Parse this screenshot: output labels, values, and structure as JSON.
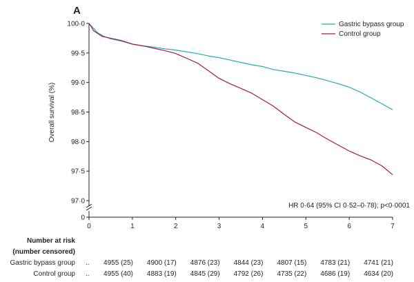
{
  "chart_data": {
    "type": "line",
    "panel_label": "A",
    "ylabel": "Overall survival (%)",
    "xlabel": "",
    "xlim": [
      0,
      7
    ],
    "ylim": [
      97.0,
      100.0
    ],
    "y_axis_break": true,
    "x_ticks": [
      "0",
      "1",
      "2",
      "3",
      "4",
      "5",
      "6",
      "7"
    ],
    "y_ticks": [
      "97·0",
      "97·5",
      "98·0",
      "98·5",
      "99·0",
      "99·5",
      "100·0"
    ],
    "y_break_label": "0",
    "legend_position": "top-right",
    "series": [
      {
        "name": "Gastric bypass group",
        "color": "#2aa6b5",
        "x": [
          0,
          0.1,
          0.2,
          0.35,
          0.5,
          0.75,
          1.0,
          1.25,
          1.5,
          1.75,
          2.0,
          2.25,
          2.5,
          2.75,
          3.0,
          3.25,
          3.5,
          3.75,
          4.0,
          4.25,
          4.5,
          4.75,
          5.0,
          5.25,
          5.5,
          5.75,
          6.0,
          6.25,
          6.5,
          6.75,
          7.0
        ],
        "y": [
          100.0,
          99.92,
          99.84,
          99.78,
          99.74,
          99.7,
          99.65,
          99.62,
          99.6,
          99.57,
          99.55,
          99.52,
          99.49,
          99.45,
          99.42,
          99.38,
          99.34,
          99.3,
          99.27,
          99.22,
          99.19,
          99.16,
          99.12,
          99.08,
          99.03,
          98.98,
          98.92,
          98.84,
          98.74,
          98.64,
          98.54
        ]
      },
      {
        "name": "Control group",
        "color": "#a3184b",
        "x": [
          0,
          0.05,
          0.1,
          0.2,
          0.3,
          0.5,
          0.75,
          1.0,
          1.25,
          1.5,
          1.75,
          2.0,
          2.25,
          2.5,
          2.75,
          3.0,
          3.25,
          3.5,
          3.75,
          4.0,
          4.25,
          4.5,
          4.75,
          5.0,
          5.25,
          5.5,
          5.75,
          6.0,
          6.25,
          6.5,
          6.75,
          7.0
        ],
        "y": [
          100.0,
          99.95,
          99.88,
          99.83,
          99.78,
          99.75,
          99.71,
          99.65,
          99.62,
          99.58,
          99.54,
          99.49,
          99.41,
          99.33,
          99.2,
          99.07,
          98.98,
          98.9,
          98.82,
          98.71,
          98.6,
          98.46,
          98.33,
          98.24,
          98.15,
          98.04,
          97.94,
          97.84,
          97.76,
          97.69,
          97.59,
          97.44
        ]
      }
    ],
    "annotation": "HR 0·64 (95% CI 0·52–0·78); p<0·0001"
  },
  "risk_table": {
    "title": "Number at risk",
    "subtitle": "(number censored)",
    "rows": [
      {
        "label": "Gastric bypass group",
        "dots": "..",
        "values": [
          "4955 (25)",
          "4900 (17)",
          "4876 (23)",
          "4844 (23)",
          "4807 (15)",
          "4783 (21)",
          "4741 (21)"
        ]
      },
      {
        "label": "Control group",
        "dots": "..",
        "values": [
          "4955 (40)",
          "4883 (19)",
          "4845 (29)",
          "4792 (26)",
          "4735 (22)",
          "4686 (19)",
          "4634 (20)"
        ]
      }
    ]
  }
}
